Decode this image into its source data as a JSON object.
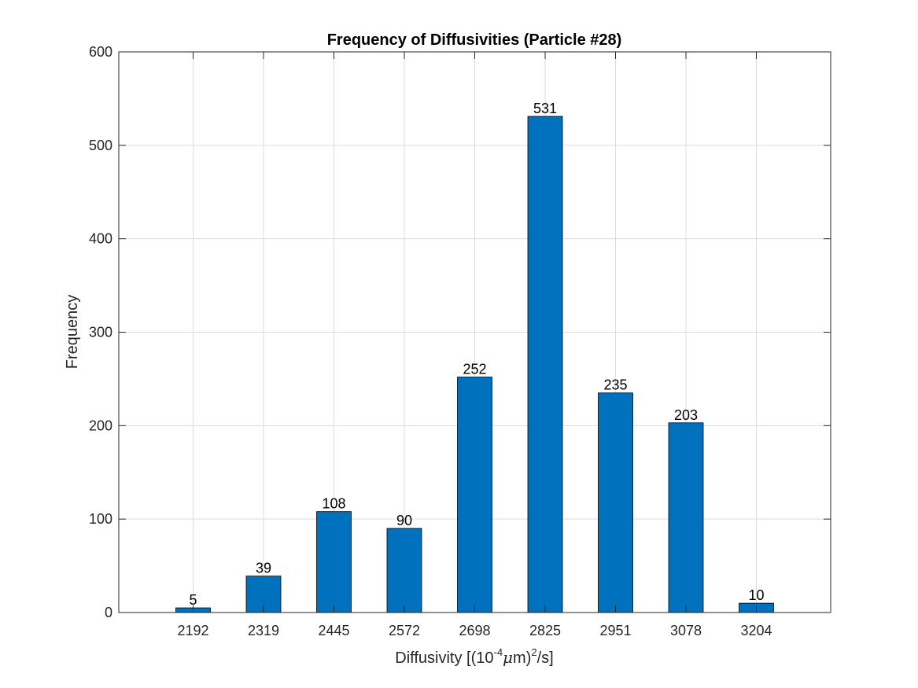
{
  "chart_data": {
    "type": "bar",
    "title": "Frequency of Diffusivities (Particle #28)",
    "xlabel": {
      "prefix": "Diffusivity [(10",
      "exp1": "-4",
      "mu": "μ",
      "mid": "m)",
      "exp2": "2",
      "suffix": "/s]"
    },
    "ylabel": "Frequency",
    "categories": [
      "2192",
      "2319",
      "2445",
      "2572",
      "2698",
      "2825",
      "2951",
      "3078",
      "3204"
    ],
    "values": [
      5,
      39,
      108,
      90,
      252,
      531,
      235,
      203,
      10
    ],
    "value_labels": [
      "5",
      "39",
      "108",
      "90",
      "252",
      "531",
      "235",
      "203",
      "10"
    ],
    "ylim": [
      0,
      600
    ],
    "yticks": [
      0,
      100,
      200,
      300,
      400,
      500,
      600
    ],
    "ytick_labels": [
      "0",
      "100",
      "200",
      "300",
      "400",
      "500",
      "600"
    ],
    "grid": true,
    "bar_color": "#0072BD",
    "bar_edge_color": "#000000"
  }
}
